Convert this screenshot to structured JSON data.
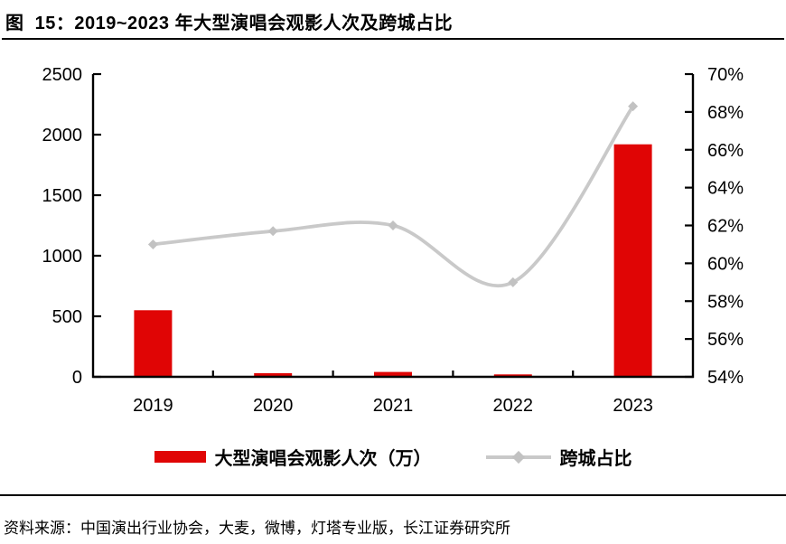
{
  "header": {
    "title": "图  15：2019~2023 年大型演唱会观影人次及跨城占比"
  },
  "chart_data": {
    "type": "combo",
    "title": "2019~2023 年大型演唱会观影人次及跨城占比",
    "categories": [
      "2019",
      "2020",
      "2021",
      "2022",
      "2023"
    ],
    "series": [
      {
        "name": "大型演唱会观影人次（万）",
        "type": "bar",
        "axis": "left",
        "color": "#e00505",
        "values": [
          550,
          30,
          40,
          20,
          1920
        ]
      },
      {
        "name": "跨城占比",
        "type": "line",
        "axis": "right",
        "color": "#c9c9c9",
        "marker": "diamond",
        "marker_color": "#c2c2c2",
        "values": [
          61.0,
          61.7,
          62.0,
          59.0,
          68.3
        ]
      }
    ],
    "left_axis": {
      "min": 0,
      "max": 2500,
      "tick_labels": [
        "0",
        "500",
        "1000",
        "1500",
        "2000",
        "2500"
      ]
    },
    "right_axis": {
      "min": 54,
      "max": 70,
      "tick_labels": [
        "54%",
        "56%",
        "58%",
        "60%",
        "62%",
        "64%",
        "66%",
        "68%",
        "70%"
      ]
    },
    "grid": false,
    "legend_position": "bottom"
  },
  "footer": {
    "source": "资料来源：中国演出行业协会，大麦，微博，灯塔专业版，长江证券研究所"
  }
}
